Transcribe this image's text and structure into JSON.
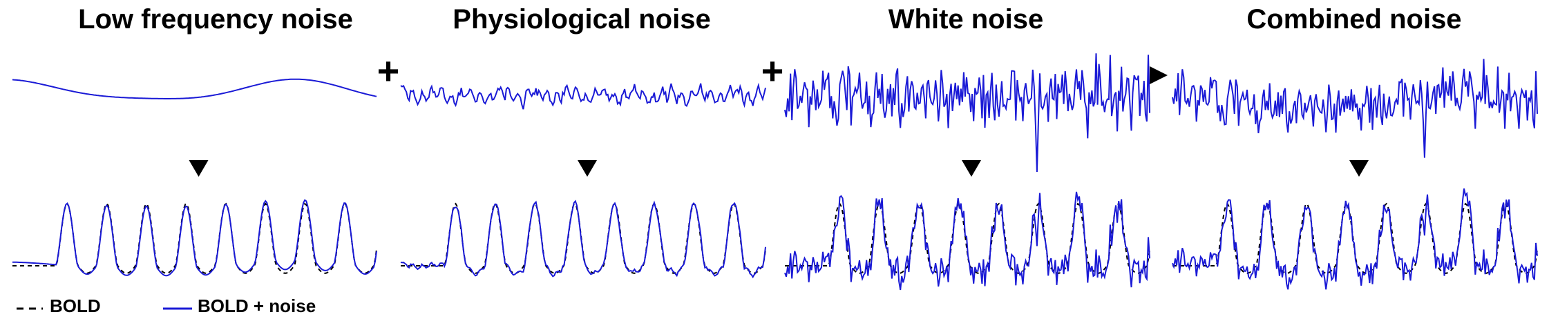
{
  "panels": [
    {
      "title": "Low frequency noise",
      "kind": "low"
    },
    {
      "title": "Physiological noise",
      "kind": "physio"
    },
    {
      "title": "White noise",
      "kind": "white"
    },
    {
      "title": "Combined noise",
      "kind": "combined"
    }
  ],
  "operators": [
    "+",
    "+",
    "▶"
  ],
  "legend": {
    "bold_label": "BOLD",
    "noise_label": "BOLD + noise"
  },
  "colors": {
    "noise": "#1a1ad6",
    "bold": "#000000"
  }
}
